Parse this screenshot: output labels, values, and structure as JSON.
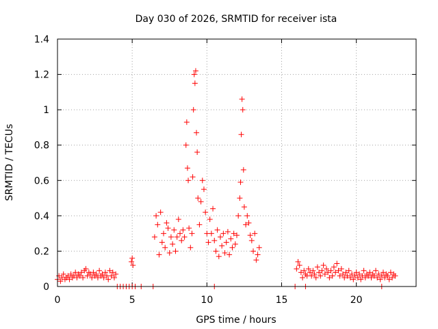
{
  "chart_data": {
    "type": "scatter",
    "title": "Day 030 of 2026, SRMTID for receiver ista",
    "xlabel": "GPS time / hours",
    "ylabel": "SRMTID / TECUs",
    "xlim": [
      0,
      24
    ],
    "ylim": [
      0,
      1.4
    ],
    "xticks": [
      0,
      5,
      10,
      15,
      20
    ],
    "yticks": [
      0,
      0.2,
      0.4,
      0.6,
      0.8,
      1,
      1.2,
      1.4
    ],
    "xtick_labels": [
      "0",
      "5",
      "10",
      "15",
      "20"
    ],
    "ytick_labels": [
      "0",
      "0.2",
      "0.4",
      "0.6",
      "0.8",
      "1",
      "1.2",
      "1.4"
    ],
    "grid": true,
    "marker": "plus",
    "series": [
      {
        "name": "SRMTID",
        "color": "#ff0000",
        "points": [
          [
            0.0,
            0.04
          ],
          [
            0.1,
            0.06
          ],
          [
            0.2,
            0.03
          ],
          [
            0.3,
            0.05
          ],
          [
            0.4,
            0.07
          ],
          [
            0.5,
            0.04
          ],
          [
            0.6,
            0.05
          ],
          [
            0.7,
            0.06
          ],
          [
            0.8,
            0.04
          ],
          [
            0.9,
            0.07
          ],
          [
            1.0,
            0.05
          ],
          [
            1.1,
            0.06
          ],
          [
            1.2,
            0.08
          ],
          [
            1.3,
            0.05
          ],
          [
            1.4,
            0.07
          ],
          [
            1.5,
            0.06
          ],
          [
            1.6,
            0.08
          ],
          [
            1.7,
            0.05
          ],
          [
            1.8,
            0.09
          ],
          [
            1.9,
            0.1
          ],
          [
            2.0,
            0.06
          ],
          [
            2.1,
            0.08
          ],
          [
            2.2,
            0.07
          ],
          [
            2.3,
            0.05
          ],
          [
            2.4,
            0.08
          ],
          [
            2.5,
            0.06
          ],
          [
            2.6,
            0.07
          ],
          [
            2.7,
            0.05
          ],
          [
            2.8,
            0.09
          ],
          [
            2.9,
            0.06
          ],
          [
            3.0,
            0.07
          ],
          [
            3.1,
            0.05
          ],
          [
            3.2,
            0.08
          ],
          [
            3.3,
            0.06
          ],
          [
            3.4,
            0.04
          ],
          [
            3.5,
            0.09
          ],
          [
            3.6,
            0.06
          ],
          [
            3.7,
            0.08
          ],
          [
            3.8,
            0.05
          ],
          [
            3.9,
            0.07
          ],
          [
            4.0,
            0.0
          ],
          [
            4.2,
            0.0
          ],
          [
            4.4,
            0.0
          ],
          [
            4.6,
            0.0
          ],
          [
            4.8,
            0.0
          ],
          [
            5.0,
            0.0
          ],
          [
            5.2,
            0.0
          ],
          [
            5.6,
            0.0
          ],
          [
            6.4,
            0.0
          ],
          [
            10.5,
            0.0
          ],
          [
            15.9,
            0.0
          ],
          [
            16.6,
            0.0
          ],
          [
            21.7,
            0.0
          ],
          [
            4.95,
            0.14
          ],
          [
            5.0,
            0.16
          ],
          [
            5.05,
            0.12
          ],
          [
            6.5,
            0.28
          ],
          [
            6.6,
            0.4
          ],
          [
            6.7,
            0.35
          ],
          [
            6.8,
            0.18
          ],
          [
            6.9,
            0.42
          ],
          [
            7.0,
            0.25
          ],
          [
            7.1,
            0.3
          ],
          [
            7.2,
            0.22
          ],
          [
            7.3,
            0.36
          ],
          [
            7.4,
            0.33
          ],
          [
            7.5,
            0.19
          ],
          [
            7.6,
            0.28
          ],
          [
            7.7,
            0.24
          ],
          [
            7.8,
            0.32
          ],
          [
            7.9,
            0.2
          ],
          [
            8.0,
            0.28
          ],
          [
            8.1,
            0.38
          ],
          [
            8.2,
            0.3
          ],
          [
            8.3,
            0.26
          ],
          [
            8.4,
            0.32
          ],
          [
            8.5,
            0.28
          ],
          [
            8.6,
            0.8
          ],
          [
            8.65,
            0.93
          ],
          [
            8.7,
            0.67
          ],
          [
            8.75,
            0.6
          ],
          [
            8.8,
            0.33
          ],
          [
            8.9,
            0.22
          ],
          [
            9.0,
            0.3
          ],
          [
            9.05,
            0.62
          ],
          [
            9.1,
            1.0
          ],
          [
            9.15,
            1.2
          ],
          [
            9.2,
            1.15
          ],
          [
            9.25,
            1.22
          ],
          [
            9.3,
            0.87
          ],
          [
            9.35,
            0.76
          ],
          [
            9.4,
            0.5
          ],
          [
            9.5,
            0.35
          ],
          [
            9.6,
            0.48
          ],
          [
            9.7,
            0.6
          ],
          [
            9.8,
            0.55
          ],
          [
            9.9,
            0.42
          ],
          [
            10.0,
            0.3
          ],
          [
            10.1,
            0.25
          ],
          [
            10.2,
            0.38
          ],
          [
            10.3,
            0.3
          ],
          [
            10.4,
            0.44
          ],
          [
            10.5,
            0.26
          ],
          [
            10.6,
            0.2
          ],
          [
            10.7,
            0.32
          ],
          [
            10.8,
            0.17
          ],
          [
            10.9,
            0.28
          ],
          [
            11.0,
            0.23
          ],
          [
            11.1,
            0.3
          ],
          [
            11.2,
            0.19
          ],
          [
            11.3,
            0.25
          ],
          [
            11.4,
            0.31
          ],
          [
            11.5,
            0.18
          ],
          [
            11.6,
            0.27
          ],
          [
            11.7,
            0.22
          ],
          [
            11.8,
            0.3
          ],
          [
            11.9,
            0.24
          ],
          [
            12.0,
            0.29
          ],
          [
            12.1,
            0.4
          ],
          [
            12.2,
            0.5
          ],
          [
            12.25,
            0.59
          ],
          [
            12.3,
            0.86
          ],
          [
            12.35,
            1.06
          ],
          [
            12.4,
            1.0
          ],
          [
            12.45,
            0.66
          ],
          [
            12.5,
            0.45
          ],
          [
            12.6,
            0.35
          ],
          [
            12.7,
            0.4
          ],
          [
            12.8,
            0.36
          ],
          [
            12.9,
            0.29
          ],
          [
            13.0,
            0.26
          ],
          [
            13.1,
            0.2
          ],
          [
            13.2,
            0.3
          ],
          [
            13.3,
            0.15
          ],
          [
            13.4,
            0.18
          ],
          [
            13.5,
            0.22
          ],
          [
            16.0,
            0.1
          ],
          [
            16.1,
            0.14
          ],
          [
            16.2,
            0.12
          ],
          [
            16.3,
            0.08
          ],
          [
            16.4,
            0.05
          ],
          [
            16.5,
            0.09
          ],
          [
            16.6,
            0.07
          ],
          [
            16.7,
            0.06
          ],
          [
            16.8,
            0.1
          ],
          [
            16.9,
            0.08
          ],
          [
            17.0,
            0.06
          ],
          [
            17.1,
            0.09
          ],
          [
            17.2,
            0.07
          ],
          [
            17.3,
            0.05
          ],
          [
            17.4,
            0.11
          ],
          [
            17.5,
            0.08
          ],
          [
            17.6,
            0.06
          ],
          [
            17.7,
            0.09
          ],
          [
            17.8,
            0.12
          ],
          [
            17.9,
            0.07
          ],
          [
            18.0,
            0.1
          ],
          [
            18.1,
            0.08
          ],
          [
            18.2,
            0.05
          ],
          [
            18.3,
            0.09
          ],
          [
            18.4,
            0.06
          ],
          [
            18.5,
            0.11
          ],
          [
            18.6,
            0.08
          ],
          [
            18.7,
            0.13
          ],
          [
            18.8,
            0.09
          ],
          [
            18.9,
            0.06
          ],
          [
            19.0,
            0.1
          ],
          [
            19.1,
            0.07
          ],
          [
            19.2,
            0.05
          ],
          [
            19.3,
            0.08
          ],
          [
            19.4,
            0.06
          ],
          [
            19.5,
            0.09
          ],
          [
            19.6,
            0.05
          ],
          [
            19.7,
            0.07
          ],
          [
            19.8,
            0.04
          ],
          [
            19.9,
            0.06
          ],
          [
            20.0,
            0.08
          ],
          [
            20.1,
            0.05
          ],
          [
            20.2,
            0.07
          ],
          [
            20.3,
            0.04
          ],
          [
            20.4,
            0.06
          ],
          [
            20.5,
            0.09
          ],
          [
            20.6,
            0.05
          ],
          [
            20.7,
            0.07
          ],
          [
            20.8,
            0.06
          ],
          [
            20.9,
            0.08
          ],
          [
            21.0,
            0.05
          ],
          [
            21.1,
            0.07
          ],
          [
            21.2,
            0.06
          ],
          [
            21.3,
            0.09
          ],
          [
            21.4,
            0.05
          ],
          [
            21.5,
            0.07
          ],
          [
            21.6,
            0.04
          ],
          [
            21.7,
            0.06
          ],
          [
            21.8,
            0.08
          ],
          [
            21.9,
            0.05
          ],
          [
            22.0,
            0.07
          ],
          [
            22.1,
            0.06
          ],
          [
            22.2,
            0.04
          ],
          [
            22.3,
            0.08
          ],
          [
            22.4,
            0.05
          ],
          [
            22.5,
            0.07
          ],
          [
            22.6,
            0.06
          ]
        ]
      }
    ]
  }
}
